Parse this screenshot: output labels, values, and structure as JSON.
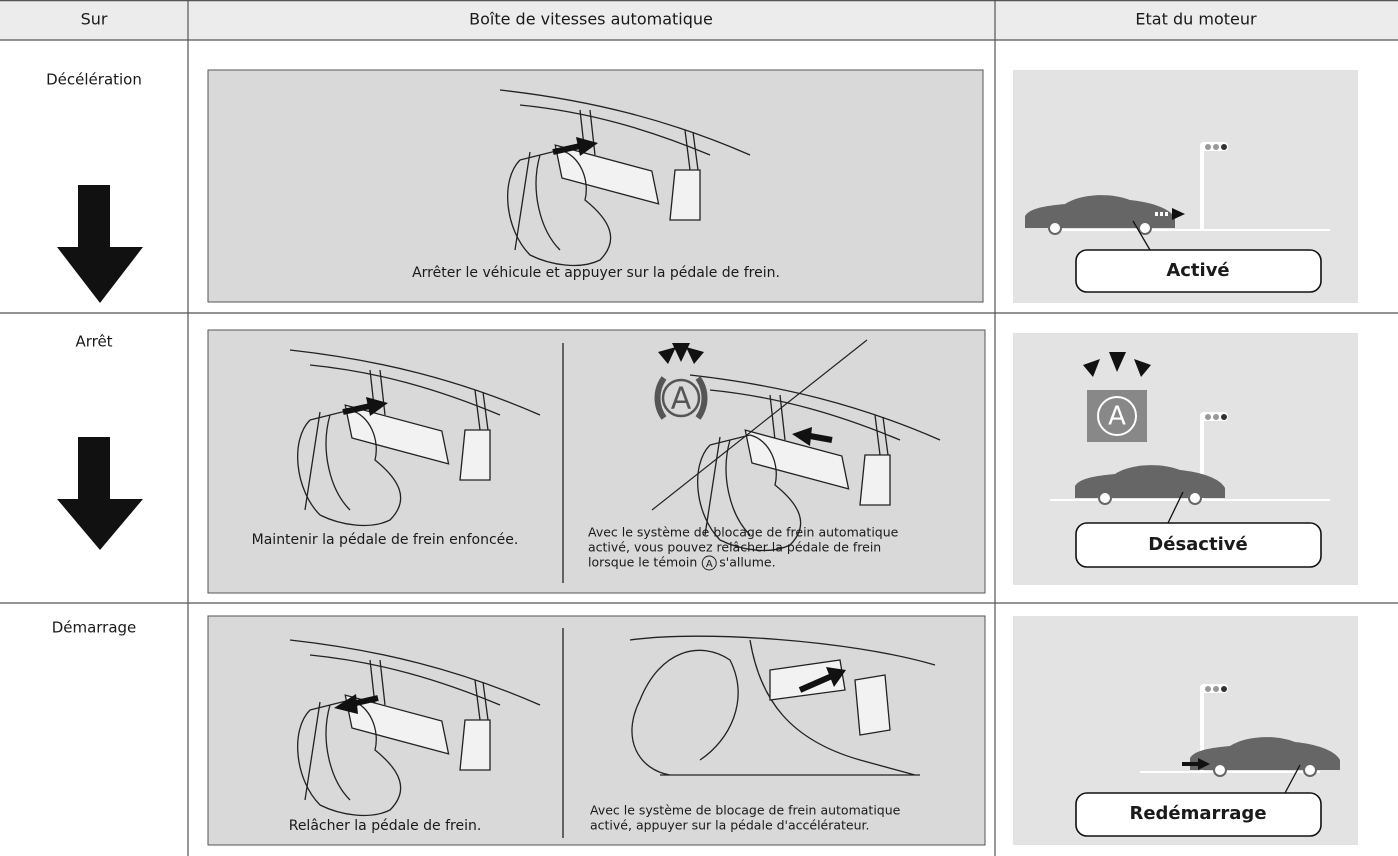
{
  "table": {
    "headers": [
      "Sur",
      "Boîte de vitesses automatique",
      "Etat du moteur"
    ],
    "rows": [
      {
        "stage": "Décélération",
        "captions": [
          {
            "lines": [
              "Arrêter le véhicule et appuyer sur la pédale de frein."
            ]
          }
        ],
        "engine_state": "Activé"
      },
      {
        "stage": "Arrêt",
        "captions": [
          {
            "lines": [
              "Maintenir la pédale de frein enfoncée."
            ]
          },
          {
            "lines": [
              "Avec le système de blocage de frein automatique",
              "activé, vous pouvez relâcher la pédale de frein"
            ],
            "icon_line": [
              "lorsque le témoin",
              "s'allume."
            ]
          }
        ],
        "engine_state": "Désactivé"
      },
      {
        "stage": "Démarrage",
        "captions": [
          {
            "lines": [
              "Relâcher la pédale de frein."
            ]
          },
          {
            "lines": [
              "Avec le système de blocage de frein automatique",
              "activé, appuyer sur la pédale d'accélérateur."
            ]
          }
        ],
        "engine_state": "Redémarrage"
      }
    ]
  },
  "indicator_symbol": "A"
}
